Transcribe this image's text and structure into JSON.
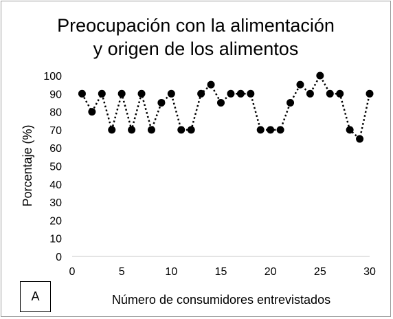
{
  "chart_data": {
    "type": "scatter",
    "title_lines": [
      "Preocupación con la alimentación",
      "y origen de los alimentos"
    ],
    "xlabel": "Número de consumidores entrevistados",
    "ylabel": "Porcentaje (%)",
    "xlim": [
      0,
      30
    ],
    "ylim": [
      0,
      100
    ],
    "x_ticks": [
      "0",
      "5",
      "10",
      "15",
      "20",
      "25",
      "30"
    ],
    "y_ticks": [
      "0",
      "10",
      "20",
      "30",
      "40",
      "50",
      "60",
      "70",
      "80",
      "90",
      "100"
    ],
    "grid": false,
    "line_style": "dotted",
    "marker": "filled-circle",
    "series_color": "#000000",
    "x": [
      1,
      2,
      3,
      4,
      5,
      6,
      7,
      8,
      9,
      10,
      11,
      12,
      13,
      14,
      15,
      16,
      17,
      18,
      19,
      20,
      21,
      22,
      23,
      24,
      25,
      26,
      27,
      28,
      29,
      30
    ],
    "y": [
      90,
      80,
      90,
      70,
      90,
      70,
      90,
      70,
      85,
      90,
      70,
      70,
      90,
      95,
      85,
      90,
      90,
      90,
      70,
      70,
      70,
      85,
      95,
      90,
      100,
      90,
      90,
      70,
      65,
      90
    ]
  },
  "panel_label": "A"
}
